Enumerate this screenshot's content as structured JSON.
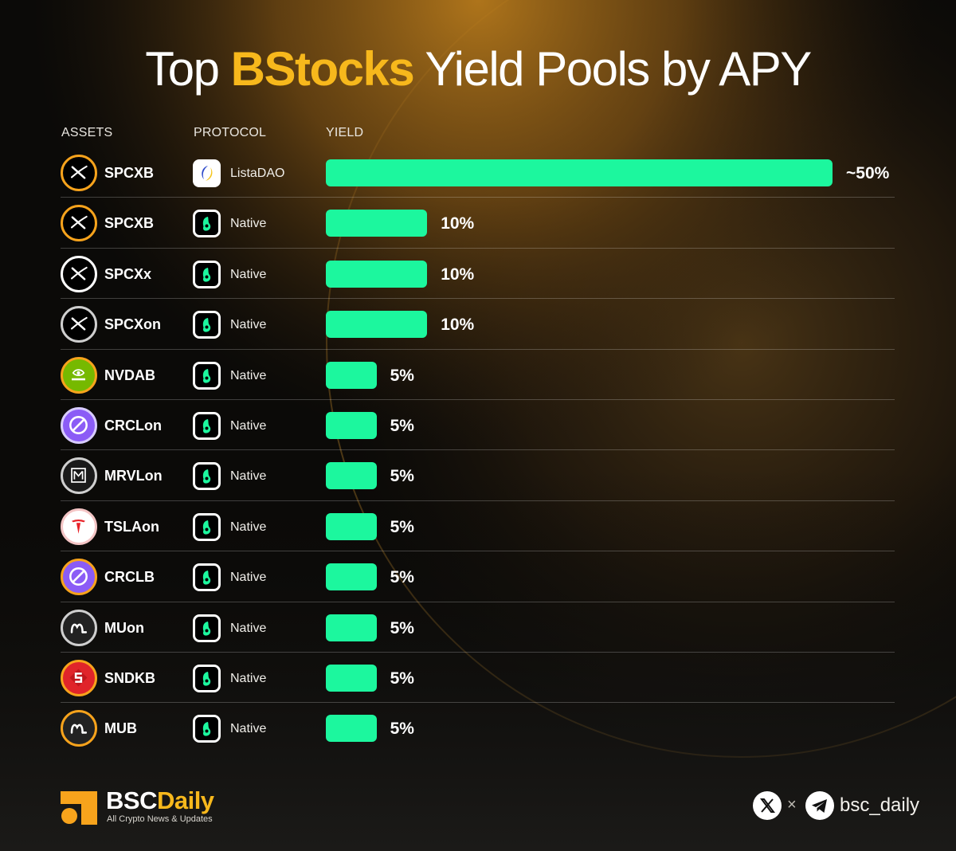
{
  "title": {
    "prefix": "Top",
    "highlight": "BStocks",
    "suffix": "Yield Pools by APY"
  },
  "headers": {
    "assets": "ASSETS",
    "protocol": "PROTOCOL",
    "yield": "YIELD"
  },
  "chart_data": {
    "type": "bar",
    "orientation": "horizontal",
    "title": "Top BStocks Yield Pools by APY",
    "xlabel": "YIELD",
    "ylabel": "",
    "xlim": [
      0,
      50
    ],
    "grid": false,
    "bar_color": "#1cf79e",
    "rows": [
      {
        "asset": "SPCXB",
        "protocol": "ListaDAO",
        "value": 50,
        "label": "~50%",
        "asset_icon": "spacex-icon",
        "ring": "#f7a31c",
        "protocol_icon": "listadao-icon"
      },
      {
        "asset": "SPCXB",
        "protocol": "Native",
        "value": 10,
        "label": "10%",
        "asset_icon": "spacex-icon",
        "ring": "#f7a31c",
        "protocol_icon": "native-icon"
      },
      {
        "asset": "SPCXx",
        "protocol": "Native",
        "value": 10,
        "label": "10%",
        "asset_icon": "spacex-icon",
        "ring": "#ffffff",
        "protocol_icon": "native-icon"
      },
      {
        "asset": "SPCXon",
        "protocol": "Native",
        "value": 10,
        "label": "10%",
        "asset_icon": "spacex-icon",
        "ring": "#cfcfcf",
        "protocol_icon": "native-icon"
      },
      {
        "asset": "NVDAB",
        "protocol": "Native",
        "value": 5,
        "label": "5%",
        "asset_icon": "nvidia-icon",
        "ring": "#f7a31c",
        "protocol_icon": "native-icon"
      },
      {
        "asset": "CRCLon",
        "protocol": "Native",
        "value": 5,
        "label": "5%",
        "asset_icon": "circle-icon",
        "ring": "#d8ccff",
        "protocol_icon": "native-icon"
      },
      {
        "asset": "MRVLon",
        "protocol": "Native",
        "value": 5,
        "label": "5%",
        "asset_icon": "marvell-icon",
        "ring": "#cfcfcf",
        "protocol_icon": "native-icon"
      },
      {
        "asset": "TSLAon",
        "protocol": "Native",
        "value": 5,
        "label": "5%",
        "asset_icon": "tesla-icon",
        "ring": "#f4c5c5",
        "protocol_icon": "native-icon"
      },
      {
        "asset": "CRCLB",
        "protocol": "Native",
        "value": 5,
        "label": "5%",
        "asset_icon": "circle-icon",
        "ring": "#f7a31c",
        "protocol_icon": "native-icon"
      },
      {
        "asset": "MUon",
        "protocol": "Native",
        "value": 5,
        "label": "5%",
        "asset_icon": "micron-icon",
        "ring": "#cfcfcf",
        "protocol_icon": "native-icon"
      },
      {
        "asset": "SNDKB",
        "protocol": "Native",
        "value": 5,
        "label": "5%",
        "asset_icon": "sandisk-icon",
        "ring": "#f7a31c",
        "protocol_icon": "native-icon"
      },
      {
        "asset": "MUB",
        "protocol": "Native",
        "value": 5,
        "label": "5%",
        "asset_icon": "micron-icon",
        "ring": "#f7a31c",
        "protocol_icon": "native-icon"
      }
    ]
  },
  "brand": {
    "name_a": "BSC",
    "name_b": "Daily",
    "tagline": "All Crypto News & Updates"
  },
  "social": {
    "separator": "×",
    "handle": "bsc_daily",
    "icons": [
      "x-icon",
      "telegram-icon"
    ]
  },
  "colors": {
    "accent": "#f7b81c",
    "bar": "#1cf79e",
    "background": "#0b0a08"
  }
}
